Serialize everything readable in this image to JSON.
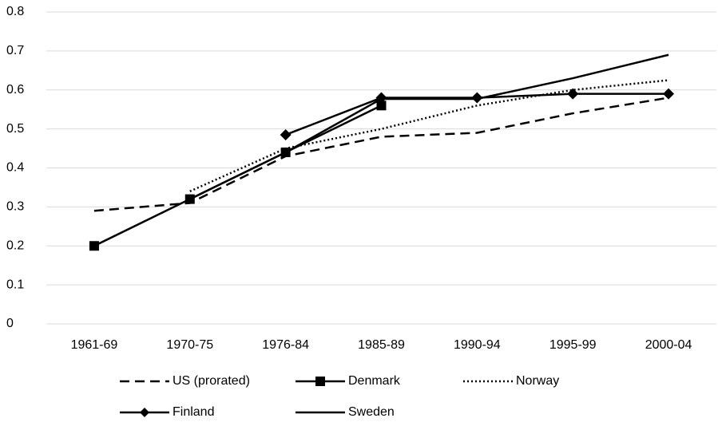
{
  "chart_data": {
    "type": "line",
    "categories": [
      "1961-69",
      "1970-75",
      "1976-84",
      "1985-89",
      "1990-94",
      "1995-99",
      "2000-04"
    ],
    "series": [
      {
        "name": "US (prorated)",
        "color": "#000000",
        "dash": "dashed",
        "values": [
          0.29,
          0.31,
          0.43,
          0.48,
          0.49,
          0.54,
          0.58
        ]
      },
      {
        "name": "Denmark",
        "color": "#000000",
        "dash": "solid",
        "marker": "square",
        "values": [
          0.2,
          0.32,
          0.44,
          0.56,
          null,
          null,
          null
        ]
      },
      {
        "name": "Norway",
        "color": "#000000",
        "dash": "dotted",
        "values": [
          null,
          0.34,
          0.45,
          0.5,
          0.56,
          0.6,
          0.625
        ]
      },
      {
        "name": "Finland",
        "color": "#000000",
        "dash": "solid",
        "marker": "diamond",
        "values": [
          null,
          null,
          0.485,
          0.58,
          0.58,
          0.59,
          0.59
        ]
      },
      {
        "name": "Sweden",
        "color": "#000000",
        "dash": "solid",
        "values": [
          null,
          0.32,
          0.44,
          0.577,
          0.577,
          0.63,
          0.69
        ]
      }
    ],
    "ylim": [
      0,
      0.8
    ],
    "yticks": [
      0,
      0.1,
      0.2,
      0.3,
      0.4,
      0.5,
      0.6,
      0.7,
      0.8
    ],
    "grid": true,
    "legend": "bottom"
  }
}
